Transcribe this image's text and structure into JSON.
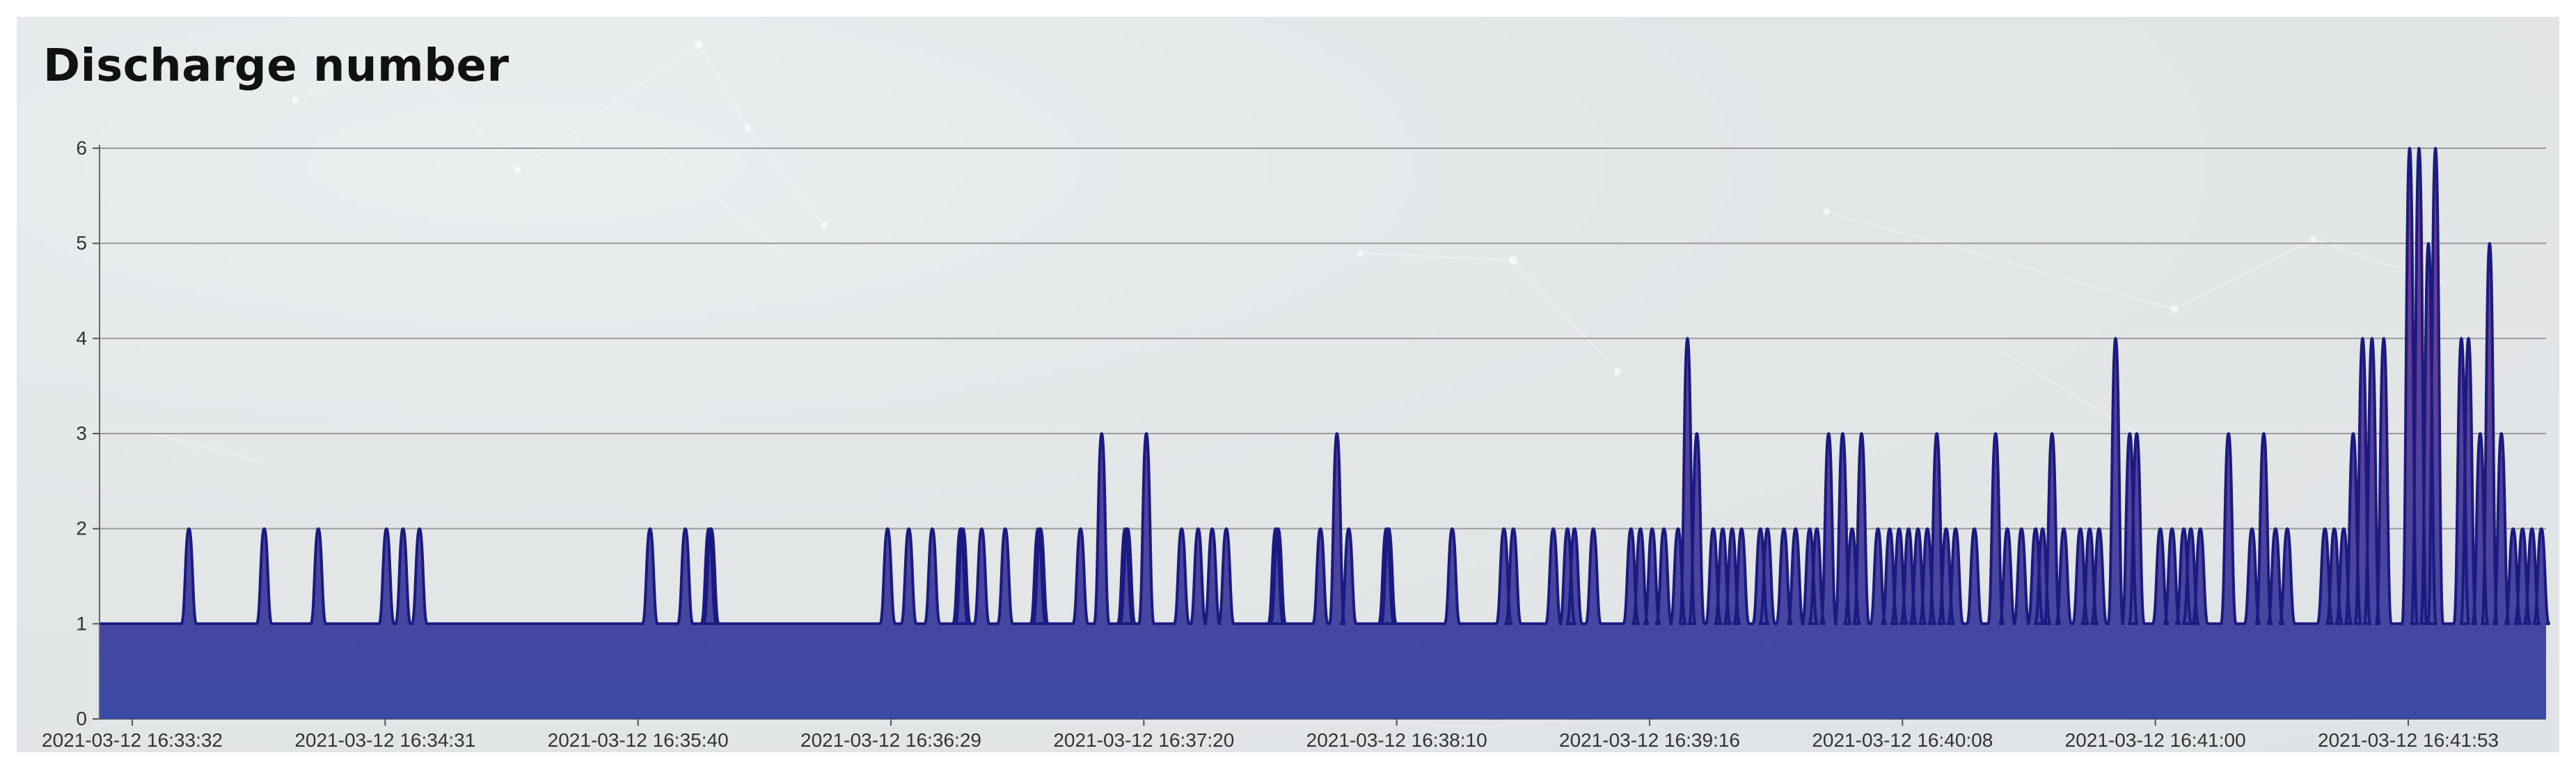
{
  "chart_data": {
    "type": "area",
    "title": "Discharge number",
    "xlabel": "",
    "ylabel": "",
    "ylim": [
      0,
      6
    ],
    "y_ticks": [
      "0",
      "1",
      "2",
      "3",
      "4",
      "5",
      "6"
    ],
    "x_ticks": [
      "2021-03-12 16:33:32",
      "2021-03-12 16:34:31",
      "2021-03-12 16:35:40",
      "2021-03-12 16:36:29",
      "2021-03-12 16:37:20",
      "2021-03-12 16:38:10",
      "2021-03-12 16:39:16",
      "2021-03-12 16:40:08",
      "2021-03-12 16:41:00",
      "2021-03-12 16:41:53"
    ],
    "baseline": 1,
    "x_span": [
      0,
      980
    ],
    "grid": true,
    "colors": {
      "line": "#1a1a80",
      "fill_top": "#6a3f8f",
      "fill_bottom": "#3a4aa0",
      "grid": "#9a9a9a"
    },
    "peaks": [
      [
        38,
        2
      ],
      [
        70,
        2
      ],
      [
        93,
        2
      ],
      [
        122,
        2
      ],
      [
        129,
        2
      ],
      [
        136,
        2
      ],
      [
        234,
        2
      ],
      [
        249,
        2
      ],
      [
        259,
        2
      ],
      [
        260,
        2
      ],
      [
        335,
        2
      ],
      [
        344,
        2
      ],
      [
        354,
        2
      ],
      [
        366,
        2
      ],
      [
        367,
        2
      ],
      [
        375,
        2
      ],
      [
        385,
        2
      ],
      [
        399,
        2
      ],
      [
        400,
        2
      ],
      [
        417,
        2
      ],
      [
        426,
        3
      ],
      [
        436,
        2
      ],
      [
        437,
        2
      ],
      [
        445,
        3
      ],
      [
        460,
        2
      ],
      [
        467,
        2
      ],
      [
        473,
        2
      ],
      [
        479,
        2
      ],
      [
        500,
        2
      ],
      [
        501,
        2
      ],
      [
        519,
        2
      ],
      [
        526,
        3
      ],
      [
        531,
        2
      ],
      [
        547,
        2
      ],
      [
        548,
        2
      ],
      [
        575,
        2
      ],
      [
        597,
        2
      ],
      [
        601,
        2
      ],
      [
        618,
        2
      ],
      [
        624,
        2
      ],
      [
        627,
        2
      ],
      [
        635,
        2
      ],
      [
        651,
        2
      ],
      [
        655,
        2
      ],
      [
        660,
        2
      ],
      [
        665,
        2
      ],
      [
        671,
        2
      ],
      [
        675,
        4
      ],
      [
        679,
        3
      ],
      [
        686,
        2
      ],
      [
        690,
        2
      ],
      [
        694,
        2
      ],
      [
        698,
        2
      ],
      [
        706,
        2
      ],
      [
        709,
        2
      ],
      [
        716,
        2
      ],
      [
        721,
        2
      ],
      [
        727,
        2
      ],
      [
        730,
        2
      ],
      [
        735,
        3
      ],
      [
        741,
        3
      ],
      [
        745,
        2
      ],
      [
        749,
        3
      ],
      [
        756,
        2
      ],
      [
        761,
        2
      ],
      [
        765,
        2
      ],
      [
        769,
        2
      ],
      [
        773,
        2
      ],
      [
        777,
        2
      ],
      [
        781,
        3
      ],
      [
        785,
        2
      ],
      [
        789,
        2
      ],
      [
        797,
        2
      ],
      [
        806,
        3
      ],
      [
        811,
        2
      ],
      [
        817,
        2
      ],
      [
        823,
        2
      ],
      [
        826,
        2
      ],
      [
        830,
        3
      ],
      [
        835,
        2
      ],
      [
        842,
        2
      ],
      [
        846,
        2
      ],
      [
        850,
        2
      ],
      [
        857,
        4
      ],
      [
        863,
        3
      ],
      [
        866,
        3
      ],
      [
        876,
        2
      ],
      [
        881,
        2
      ],
      [
        886,
        2
      ],
      [
        889,
        2
      ],
      [
        893,
        2
      ],
      [
        905,
        3
      ],
      [
        915,
        2
      ],
      [
        920,
        3
      ],
      [
        925,
        2
      ],
      [
        930,
        2
      ],
      [
        946,
        2
      ],
      [
        950,
        2
      ],
      [
        954,
        2
      ],
      [
        958,
        3
      ],
      [
        962,
        4
      ],
      [
        966,
        4
      ],
      [
        971,
        4
      ],
      [
        982,
        6
      ],
      [
        986,
        6
      ],
      [
        990,
        5
      ],
      [
        993,
        6
      ],
      [
        1004,
        4
      ],
      [
        1007,
        4
      ],
      [
        1012,
        3
      ],
      [
        1016,
        5
      ],
      [
        1021,
        3
      ],
      [
        1026,
        2
      ],
      [
        1030,
        2
      ],
      [
        1034,
        2
      ],
      [
        1038,
        2
      ]
    ]
  }
}
